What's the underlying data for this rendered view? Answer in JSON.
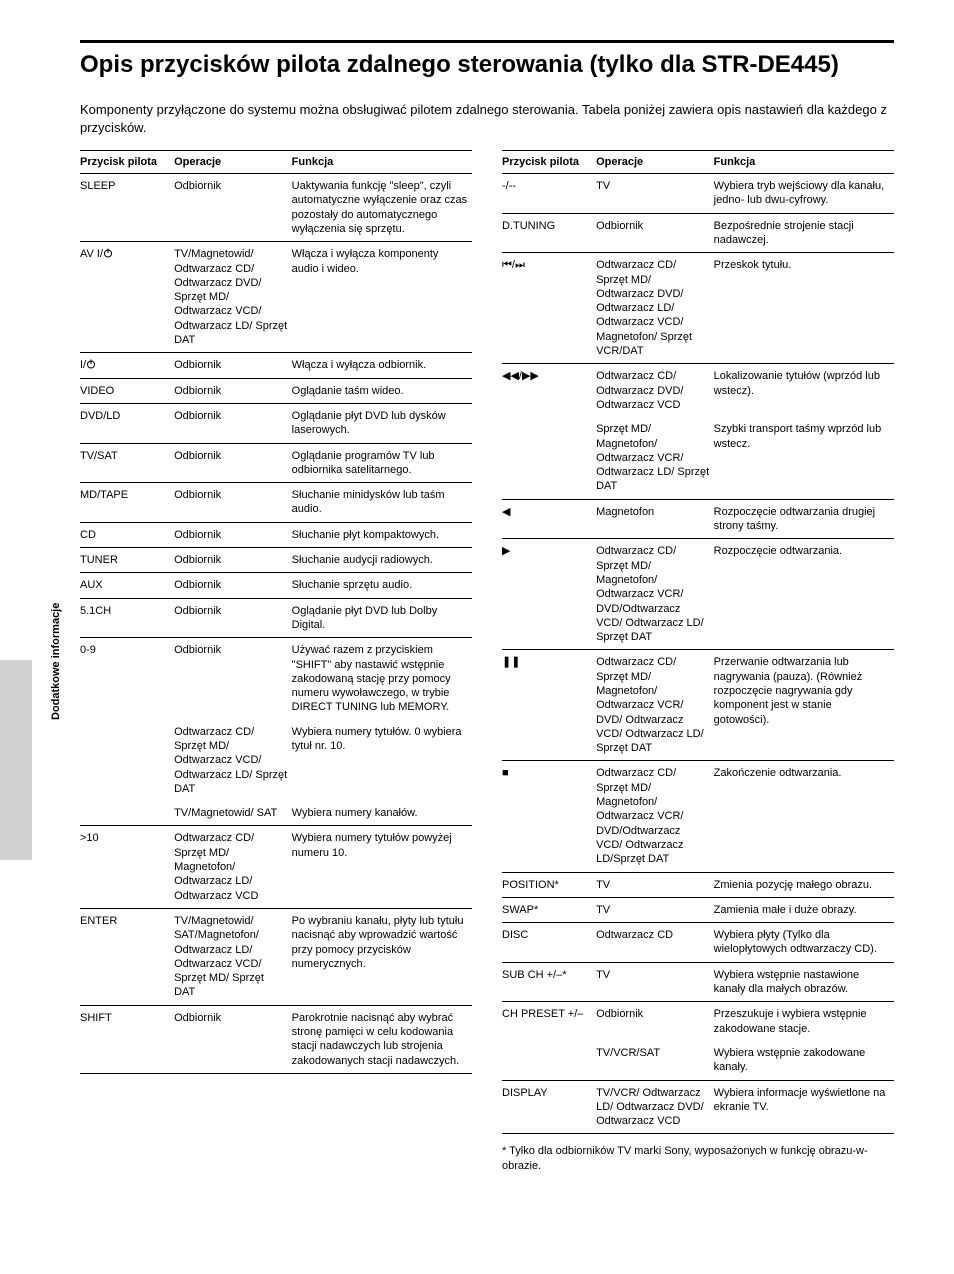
{
  "title": "Opis przycisków pilota zdalnego sterowania (tylko dla STR-DE445)",
  "intro": "Komponenty przyłączone do systemu można obsługiwać pilotem zdalnego sterowania. Tabela poniżej zawiera opis nastawień dla każdego z przycisków.",
  "sidelabel": "Dodatkowe informacje",
  "headers": {
    "c1": "Przycisk pilota",
    "c2": "Operacje",
    "c3": "Funkcja"
  },
  "footnote": "* Tylko dla odbiorników TV marki Sony, wyposażonych w funkcję obrazu-w- obrazie.",
  "left": [
    {
      "b": "SLEEP",
      "o": "Odbiornik",
      "f": "Uaktywania funkcję \"sleep\", czyli automatyczne wyłączenie oraz czas pozostały do automatycznego wyłączenia się sprzętu.",
      "end": true
    },
    {
      "b": "AV I/⏻",
      "o": "TV/Magnetowid/ Odtwarzacz CD/ Odtwarzacz DVD/ Sprzęt MD/ Odtwarzacz VCD/ Odtwarzacz LD/ Sprzęt DAT",
      "f": "Włącza i wyłącza komponenty audio i wideo.",
      "end": true,
      "power": true
    },
    {
      "b": "I/⏻",
      "o": "Odbiornik",
      "f": "Włącza i wyłącza odbiornik.",
      "end": true,
      "power": true
    },
    {
      "b": "VIDEO",
      "o": "Odbiornik",
      "f": "Oglądanie taśm wideo.",
      "end": true
    },
    {
      "b": "DVD/LD",
      "o": "Odbiornik",
      "f": "Oglądanie płyt DVD lub dysków laserowych.",
      "end": true
    },
    {
      "b": "TV/SAT",
      "o": "Odbiornik",
      "f": "Oglądanie programów TV lub odbiornika satelitarnego.",
      "end": true
    },
    {
      "b": "MD/TAPE",
      "o": "Odbiornik",
      "f": "Słuchanie minidysków lub taśm audio.",
      "end": true
    },
    {
      "b": "CD",
      "o": "Odbiornik",
      "f": "Słuchanie płyt kompaktowych.",
      "end": true
    },
    {
      "b": "TUNER",
      "o": "Odbiornik",
      "f": "Słuchanie audycji radiowych.",
      "end": true
    },
    {
      "b": "AUX",
      "o": "Odbiornik",
      "f": "Słuchanie sprzętu audio.",
      "end": true
    },
    {
      "b": "5.1CH",
      "o": "Odbiornik",
      "f": "Oglądanie płyt DVD lub Dolby Digital.",
      "end": true
    },
    {
      "b": "0-9",
      "o": "Odbiornik",
      "f": "Używać razem z przyciskiem \"SHIFT\" aby nastawić wstępnie zakodowaną stację przy pomocy numeru wywoławczego, w trybie DIRECT TUNING lub MEMORY."
    },
    {
      "b": "",
      "o": "Odtwarzacz CD/ Sprzęt MD/ Odtwarzacz VCD/ Odtwarzacz LD/ Sprzęt DAT",
      "f": "Wybiera numery tytułów. 0 wybiera tytuł nr. 10."
    },
    {
      "b": "",
      "o": "TV/Magnetowid/ SAT",
      "f": "Wybiera numery kanałów.",
      "end": true
    },
    {
      "b": ">10",
      "o": "Odtwarzacz CD/ Sprzęt MD/ Magnetofon/ Odtwarzacz LD/ Odtwarzacz VCD",
      "f": "Wybiera numery tytułów powyżej numeru 10.",
      "end": true
    },
    {
      "b": "ENTER",
      "o": "TV/Magnetowid/ SAT/Magnetofon/ Odtwarzacz LD/ Odtwarzacz VCD/ Sprzęt MD/ Sprzęt DAT",
      "f": "Po wybraniu kanału, płyty lub tytułu nacisnąć aby wprowadzić wartość przy pomocy przycisków numerycznych.",
      "end": true
    },
    {
      "b": "SHIFT",
      "o": "Odbiornik",
      "f": "Parokrotnie nacisnąć aby wybrać stronę pamięci w celu kodowania stacji nadawczych lub strojenia zakodowanych stacji nadawczych.",
      "last": true
    }
  ],
  "right": [
    {
      "b": "-/--",
      "o": "TV",
      "f": "Wybiera tryb wejściowy dla kanału, jedno- lub dwu-cyfrowy.",
      "end": true
    },
    {
      "b": "D.TUNING",
      "o": "Odbiornik",
      "f": "Bezpośrednie strojenie stacji nadawczej.",
      "end": true
    },
    {
      "b": "⏮/⏭",
      "o": "Odtwarzacz CD/ Sprzęt MD/ Odtwarzacz DVD/ Odtwarzacz LD/ Odtwarzacz VCD/ Magnetofon/ Sprzęt VCR/DAT",
      "f": "Przeskok tytułu.",
      "end": true
    },
    {
      "b": "◀◀/▶▶",
      "o": "Odtwarzacz CD/ Odtwarzacz DVD/ Odtwarzacz VCD",
      "f": "Lokalizowanie tytułów (wprzód lub wstecz)."
    },
    {
      "b": "",
      "o": "Sprzęt MD/ Magnetofon/ Odtwarzacz VCR/ Odtwarzacz LD/ Sprzęt DAT",
      "f": "Szybki transport taśmy wprzód lub wstecz.",
      "end": true
    },
    {
      "b": "◀",
      "o": "Magnetofon",
      "f": "Rozpoczęcie odtwarzania drugiej strony taśmy.",
      "end": true
    },
    {
      "b": "▶",
      "o": "Odtwarzacz CD/ Sprzęt MD/ Magnetofon/ Odtwarzacz VCR/ DVD/Odtwarzacz VCD/ Odtwarzacz LD/ Sprzęt DAT",
      "f": "Rozpoczęcie odtwarzania.",
      "end": true
    },
    {
      "b": "❚❚",
      "o": "Odtwarzacz CD/ Sprzęt MD/ Magnetofon/ Odtwarzacz VCR/ DVD/ Odtwarzacz VCD/ Odtwarzacz LD/ Sprzęt DAT",
      "f": "Przerwanie odtwarzania lub nagrywania (pauza). (Również rozpoczęcie nagrywania gdy komponent jest w stanie gotowości).",
      "end": true
    },
    {
      "b": "■",
      "o": "Odtwarzacz CD/ Sprzęt MD/ Magnetofon/ Odtwarzacz VCR/ DVD/Odtwarzacz VCD/ Odtwarzacz LD/Sprzęt DAT",
      "f": "Zakończenie odtwarzania.",
      "end": true
    },
    {
      "b": "POSITION*",
      "o": "TV",
      "f": "Zmienia pozycję małego obrazu.",
      "end": true
    },
    {
      "b": "SWAP*",
      "o": "TV",
      "f": "Zamienia małe i duże obrazy.",
      "end": true
    },
    {
      "b": "DISC",
      "o": "Odtwarzacz CD",
      "f": "Wybiera płyty (Tylko dla wielopłytowych odtwarzaczy CD).",
      "end": true
    },
    {
      "b": "SUB CH +/–*",
      "o": "TV",
      "f": "Wybiera wstępnie nastawione kanały dla małych obrazów.",
      "end": true
    },
    {
      "b": "CH PRESET +/–",
      "o": "Odbiornik",
      "f": "Przeszukuje i wybiera wstępnie zakodowane stacje."
    },
    {
      "b": "",
      "o": "TV/VCR/SAT",
      "f": "Wybiera wstępnie zakodowane kanały.",
      "end": true
    },
    {
      "b": "DISPLAY",
      "o": "TV/VCR/ Odtwarzacz LD/ Odtwarzacz DVD/ Odtwarzacz VCD",
      "f": "Wybiera informacje wyświetlone na ekranie TV.",
      "last": true
    }
  ]
}
